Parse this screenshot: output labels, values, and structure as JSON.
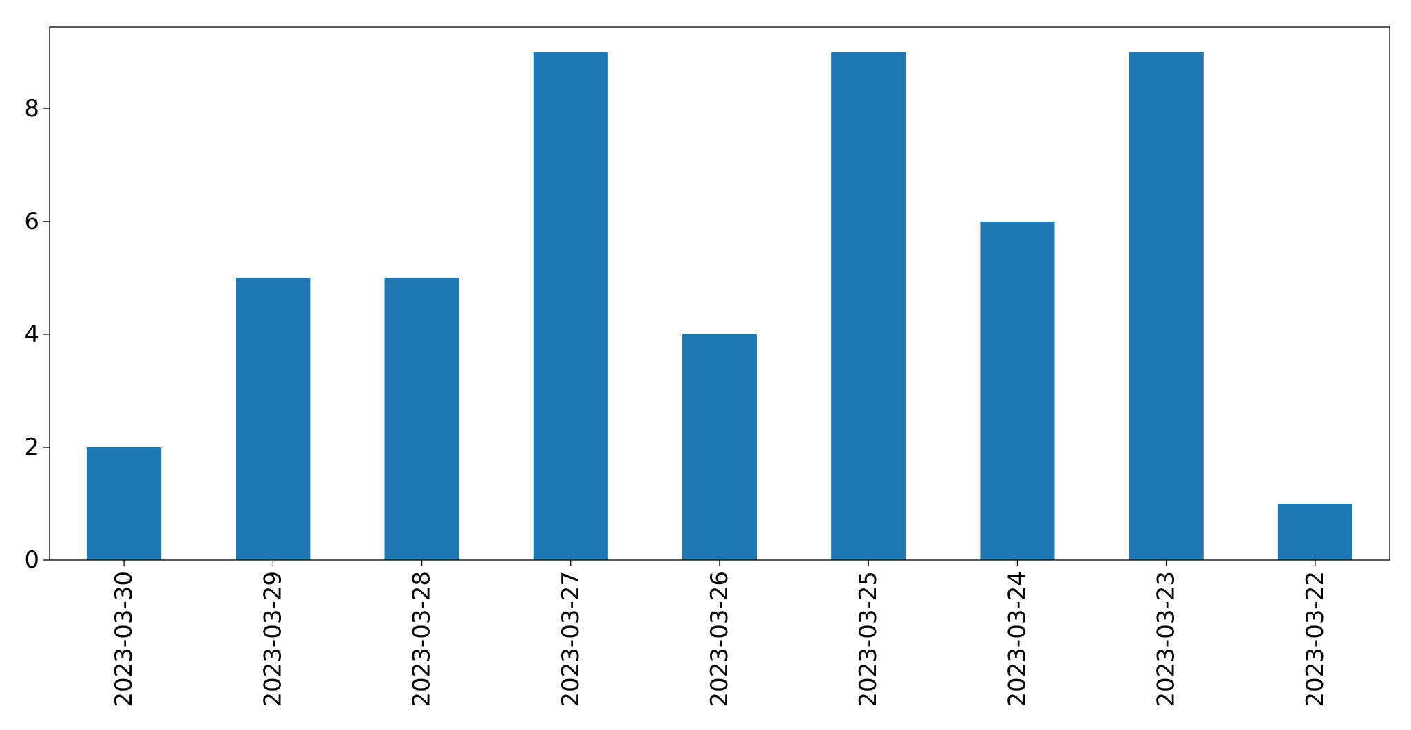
{
  "chart_data": {
    "type": "bar",
    "categories": [
      "2023-03-30",
      "2023-03-29",
      "2023-03-28",
      "2023-03-27",
      "2023-03-26",
      "2023-03-25",
      "2023-03-24",
      "2023-03-23",
      "2023-03-22"
    ],
    "values": [
      2,
      5,
      5,
      9,
      4,
      9,
      6,
      9,
      1
    ],
    "color": "#1f77b4",
    "ylim": [
      0,
      9.45
    ],
    "yticks": [
      0,
      2,
      4,
      6,
      8
    ],
    "grid": false
  }
}
